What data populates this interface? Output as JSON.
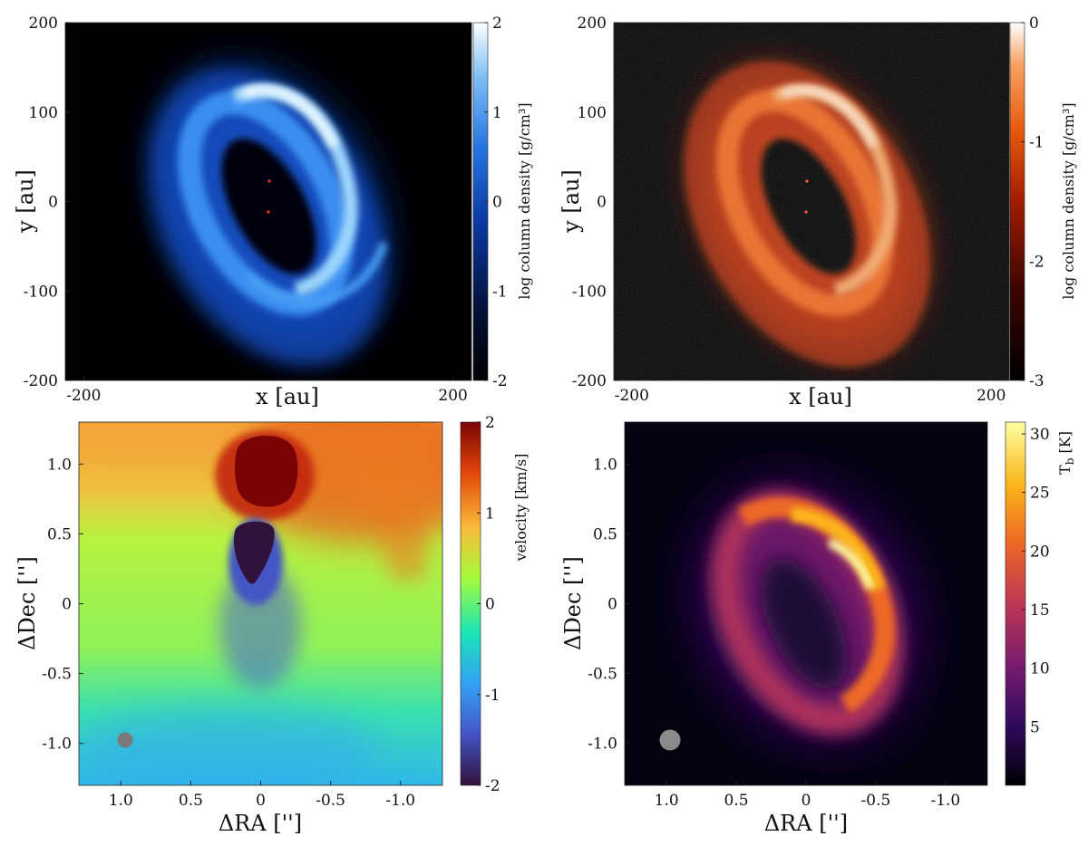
{
  "chart_data": [
    {
      "type": "heatmap",
      "panel": "top-left",
      "xlabel": "x [au]",
      "ylabel": "y [au]",
      "xlim": [
        -220,
        220
      ],
      "ylim": [
        -200,
        200
      ],
      "xticks": [
        -200,
        200
      ],
      "yticks": [
        200,
        100,
        0,
        -100,
        -200
      ],
      "colorbar": {
        "label": "log column density [g/cm³]",
        "range": [
          -2,
          2
        ],
        "ticks": [
          2,
          1,
          0,
          -1,
          -2
        ],
        "colormap": "blue"
      },
      "sink_markers": [
        {
          "x": 0,
          "y": 20
        },
        {
          "x": 0,
          "y": -12
        }
      ]
    },
    {
      "type": "heatmap",
      "panel": "top-right",
      "xlabel": "x [au]",
      "ylabel": "y [au]",
      "xlim": [
        -220,
        220
      ],
      "ylim": [
        -200,
        200
      ],
      "xticks": [
        -200,
        200
      ],
      "yticks": [
        200,
        100,
        0,
        -100,
        -200
      ],
      "colorbar": {
        "label": "log column density [g/cm³]",
        "range": [
          -3,
          0
        ],
        "ticks": [
          0,
          -1,
          -2,
          -3
        ],
        "colormap": "hot"
      },
      "sink_markers": [
        {
          "x": 0,
          "y": 20
        },
        {
          "x": 0,
          "y": -12
        }
      ]
    },
    {
      "type": "heatmap",
      "panel": "bottom-left",
      "xlabel": "ΔRA ['']",
      "ylabel": "ΔDec ['']",
      "xlim": [
        1.3,
        -1.3
      ],
      "ylim": [
        -1.3,
        1.3
      ],
      "xticks": [
        "1.0",
        "0.5",
        "0",
        "-0.5",
        "-1.0"
      ],
      "yticks": [
        "1.0",
        "0.5",
        "0",
        "-0.5",
        "-1.0"
      ],
      "colorbar": {
        "label": "velocity [km/s]",
        "range": [
          -2,
          2
        ],
        "ticks": [
          2,
          1,
          0,
          -1,
          -2
        ],
        "colormap": "turbo"
      },
      "beam": {
        "x": 1.0,
        "y": -0.97
      }
    },
    {
      "type": "heatmap",
      "panel": "bottom-right",
      "xlabel": "ΔRA ['']",
      "ylabel": "ΔDec ['']",
      "xlim": [
        1.3,
        -1.3
      ],
      "ylim": [
        -1.3,
        1.3
      ],
      "xticks": [
        "1.0",
        "0.5",
        "0",
        "-0.5",
        "-1.0"
      ],
      "yticks": [
        "1.0",
        "0.5",
        "0",
        "-0.5",
        "-1.0"
      ],
      "colorbar": {
        "label": "T_b [K]",
        "label_main": "T",
        "label_sub": "b",
        "label_unit": " [K]",
        "range": [
          0,
          31
        ],
        "ticks": [
          30,
          25,
          20,
          15,
          10,
          5
        ],
        "colormap": "inferno"
      },
      "beam": {
        "x": 1.0,
        "y": -0.97
      }
    }
  ],
  "colors": {
    "blue_map": [
      "#000000",
      "#02113a",
      "#0a3aa6",
      "#2575e0",
      "#7fc0f5",
      "#ffffff"
    ],
    "hot_map": [
      "#000000",
      "#3a0400",
      "#a11d00",
      "#e85a10",
      "#f7a060",
      "#ffffff"
    ],
    "turbo_map": [
      "#30123b",
      "#4454c4",
      "#33a2f4",
      "#1ae4b6",
      "#a4fc3c",
      "#faba39",
      "#e4460a",
      "#7a0403"
    ],
    "inferno_map": [
      "#000004",
      "#320a5e",
      "#781c6d",
      "#bc3754",
      "#ed6925",
      "#fbb61a",
      "#fcffa4"
    ]
  }
}
